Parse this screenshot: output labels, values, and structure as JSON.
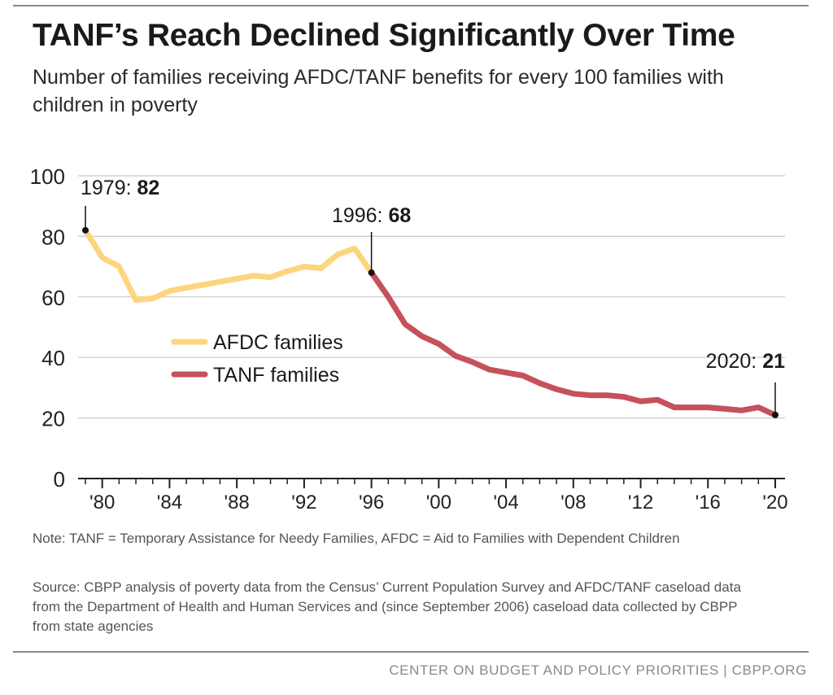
{
  "title": "TANF’s Reach Declined Significantly Over Time",
  "subtitle": "Number of families receiving AFDC/TANF benefits for every 100 families with children in poverty",
  "note": "Note: TANF = Temporary Assistance for Needy Families, AFDC = Aid to Families with Dependent Children",
  "source": "Source: CBPP analysis of poverty data from the Census’ Current Population Survey and AFDC/TANF caseload data from the Department of Health and Human Services and (since September 2006) caseload data collected by CBPP from state agencies",
  "footer": "CENTER ON BUDGET AND POLICY PRIORITIES | CBPP.ORG",
  "chart_data": {
    "type": "line",
    "xlim": [
      1979,
      2020
    ],
    "ylim": [
      0,
      100
    ],
    "yticks": [
      0,
      20,
      40,
      60,
      80,
      100
    ],
    "xticks": [
      {
        "year": 1980,
        "label": "'80"
      },
      {
        "year": 1984,
        "label": "'84"
      },
      {
        "year": 1988,
        "label": "'88"
      },
      {
        "year": 1992,
        "label": "'92"
      },
      {
        "year": 1996,
        "label": "'96"
      },
      {
        "year": 2000,
        "label": "'00"
      },
      {
        "year": 2004,
        "label": "'04"
      },
      {
        "year": 2008,
        "label": "'08"
      },
      {
        "year": 2012,
        "label": "'12"
      },
      {
        "year": 2016,
        "label": "'16"
      },
      {
        "year": 2020,
        "label": "'20"
      }
    ],
    "grid": true,
    "legend": "center-left",
    "series": [
      {
        "name": "AFDC families",
        "color": "#fdd57e",
        "x": [
          1979,
          1980,
          1981,
          1982,
          1983,
          1984,
          1985,
          1986,
          1987,
          1988,
          1989,
          1990,
          1991,
          1992,
          1993,
          1994,
          1995,
          1996
        ],
        "y": [
          82,
          73,
          70,
          59,
          59.5,
          62,
          63,
          64,
          65,
          66,
          67,
          66.5,
          68.5,
          70,
          69.5,
          74,
          76,
          68
        ]
      },
      {
        "name": "TANF families",
        "color": "#c4515b",
        "x": [
          1996,
          1997,
          1998,
          1999,
          2000,
          2001,
          2002,
          2003,
          2004,
          2005,
          2006,
          2007,
          2008,
          2009,
          2010,
          2011,
          2012,
          2013,
          2014,
          2015,
          2016,
          2017,
          2018,
          2019,
          2020
        ],
        "y": [
          68,
          60,
          51,
          47,
          44.5,
          40.5,
          38.5,
          36,
          35,
          34,
          31.5,
          29.5,
          28,
          27.5,
          27.5,
          27,
          25.5,
          26,
          23.5,
          23.5,
          23.5,
          23,
          22.5,
          23.5,
          21
        ]
      }
    ],
    "annotations": [
      {
        "x": 1979,
        "y": 82,
        "label": "1979:",
        "value": "82"
      },
      {
        "x": 1996,
        "y": 68,
        "label": "1996:",
        "value": "68"
      },
      {
        "x": 2020,
        "y": 21,
        "label": "2020:",
        "value": "21"
      }
    ]
  }
}
